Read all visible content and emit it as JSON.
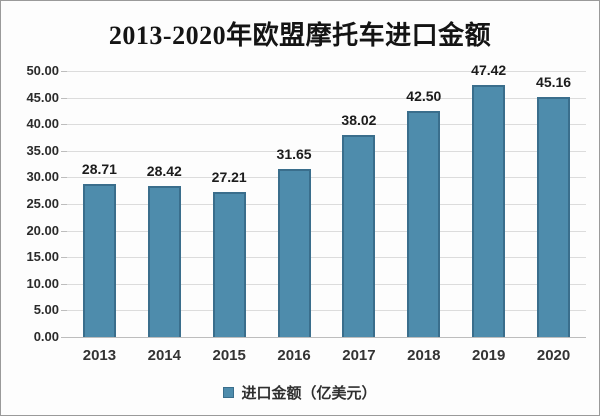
{
  "title": "2013-2020年欧盟摩托车进口金额",
  "legend": {
    "label": "进口金额（亿美元）"
  },
  "colors": {
    "bar_fill": "#4E8CAC",
    "bar_border": "#3A6E8C",
    "gridline": "#DCDCDC",
    "axis_line": "#BDBDBD",
    "text": "#262626"
  },
  "chart_data": {
    "type": "bar",
    "title": "2013-2020年欧盟摩托车进口金额",
    "categories": [
      "2013",
      "2014",
      "2015",
      "2016",
      "2017",
      "2018",
      "2019",
      "2020"
    ],
    "values": [
      28.71,
      28.42,
      27.21,
      31.65,
      38.02,
      42.5,
      47.42,
      45.16
    ],
    "series_name": "进口金额（亿美元）",
    "xlabel": "",
    "ylabel": "",
    "ylim": [
      0,
      50
    ],
    "ytick_step": 5,
    "ytick_labels": [
      "0.00",
      "5.00",
      "10.00",
      "15.00",
      "20.00",
      "25.00",
      "30.00",
      "35.00",
      "40.00",
      "45.00",
      "50.00"
    ],
    "grid": "horizontal",
    "data_labels": true,
    "legend_position": "bottom-center"
  }
}
